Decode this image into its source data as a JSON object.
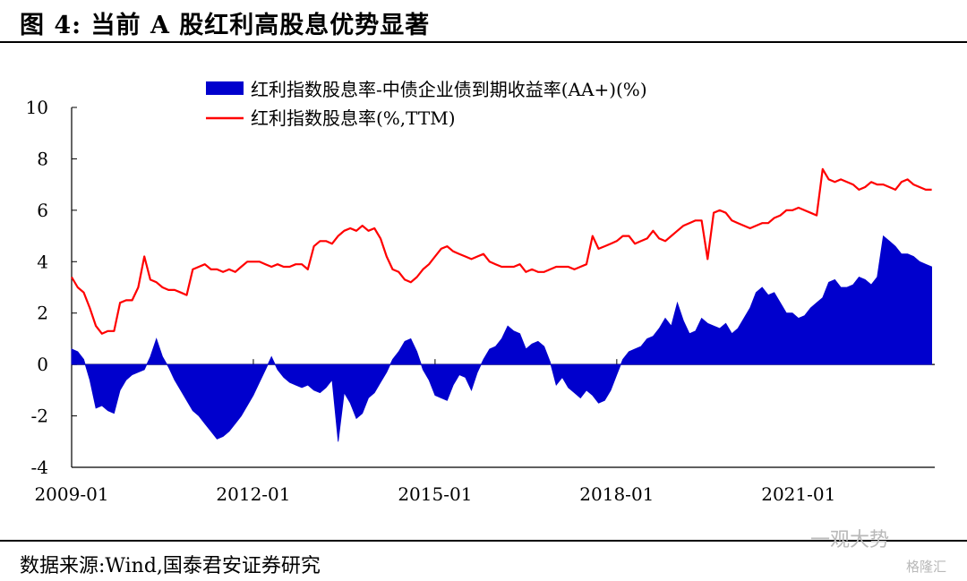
{
  "figure_title": "图 4:  当前 A 股红利高股息优势显著",
  "source": "数据来源:Wind,国泰君安证券研究",
  "watermark": "一观大势",
  "watermark_small": "格隆汇",
  "colors": {
    "area": "#0000cd",
    "line": "#ff0000",
    "axis": "#000000"
  },
  "chart_data": {
    "type": "line",
    "title": "",
    "xlabel": "",
    "ylabel": "",
    "ylim": [
      -4,
      10
    ],
    "yticks": [
      -4,
      -2,
      0,
      2,
      4,
      6,
      8,
      10
    ],
    "xlim": [
      2009.0,
      2023.25
    ],
    "xticks": [
      {
        "value": 2009.0,
        "label": "2009-01"
      },
      {
        "value": 2012.0,
        "label": "2012-01"
      },
      {
        "value": 2015.0,
        "label": "2015-01"
      },
      {
        "value": 2018.0,
        "label": "2018-01"
      },
      {
        "value": 2021.0,
        "label": "2021-01"
      }
    ],
    "grid": false,
    "legend_position": "top",
    "series": [
      {
        "name": "红利指数股息率-中债企业债到期收益率(AA+)(%)",
        "kind": "area",
        "x": [
          2009.0,
          2009.1,
          2009.2,
          2009.3,
          2009.4,
          2009.5,
          2009.6,
          2009.7,
          2009.8,
          2009.9,
          2010.0,
          2010.1,
          2010.2,
          2010.3,
          2010.4,
          2010.5,
          2010.6,
          2010.7,
          2010.8,
          2010.9,
          2011.0,
          2011.1,
          2011.2,
          2011.3,
          2011.4,
          2011.5,
          2011.6,
          2011.7,
          2011.8,
          2011.9,
          2012.0,
          2012.1,
          2012.2,
          2012.3,
          2012.4,
          2012.5,
          2012.6,
          2012.7,
          2012.8,
          2012.9,
          2013.0,
          2013.1,
          2013.2,
          2013.3,
          2013.4,
          2013.5,
          2013.6,
          2013.7,
          2013.8,
          2013.9,
          2014.0,
          2014.1,
          2014.2,
          2014.3,
          2014.4,
          2014.5,
          2014.6,
          2014.7,
          2014.8,
          2014.9,
          2015.0,
          2015.1,
          2015.2,
          2015.3,
          2015.4,
          2015.5,
          2015.6,
          2015.7,
          2015.8,
          2015.9,
          2016.0,
          2016.1,
          2016.2,
          2016.3,
          2016.4,
          2016.5,
          2016.6,
          2016.7,
          2016.8,
          2016.9,
          2017.0,
          2017.1,
          2017.2,
          2017.3,
          2017.4,
          2017.5,
          2017.6,
          2017.7,
          2017.8,
          2017.9,
          2018.0,
          2018.1,
          2018.2,
          2018.3,
          2018.4,
          2018.5,
          2018.6,
          2018.7,
          2018.8,
          2018.9,
          2019.0,
          2019.1,
          2019.2,
          2019.3,
          2019.4,
          2019.5,
          2019.6,
          2019.7,
          2019.8,
          2019.9,
          2020.0,
          2020.1,
          2020.2,
          2020.3,
          2020.4,
          2020.5,
          2020.6,
          2020.7,
          2020.8,
          2020.9,
          2021.0,
          2021.1,
          2021.2,
          2021.3,
          2021.4,
          2021.5,
          2021.6,
          2021.7,
          2021.8,
          2021.9,
          2022.0,
          2022.1,
          2022.2,
          2022.3,
          2022.4,
          2022.5,
          2022.6,
          2022.7,
          2022.8,
          2022.9,
          2023.0,
          2023.1,
          2023.2
        ],
        "values": [
          0.6,
          0.5,
          0.2,
          -0.6,
          -1.7,
          -1.6,
          -1.8,
          -1.9,
          -1.0,
          -0.6,
          -0.4,
          -0.3,
          -0.2,
          0.3,
          1.0,
          0.3,
          -0.1,
          -0.6,
          -1.0,
          -1.4,
          -1.8,
          -2.0,
          -2.3,
          -2.6,
          -2.9,
          -2.8,
          -2.6,
          -2.3,
          -2.0,
          -1.6,
          -1.2,
          -0.7,
          -0.2,
          0.3,
          -0.2,
          -0.5,
          -0.7,
          -0.8,
          -0.9,
          -0.8,
          -1.0,
          -1.1,
          -0.9,
          -0.6,
          -3.0,
          -1.1,
          -1.5,
          -2.1,
          -1.9,
          -1.3,
          -1.1,
          -0.7,
          -0.3,
          0.2,
          0.5,
          0.9,
          1.0,
          0.5,
          -0.2,
          -0.6,
          -1.2,
          -1.3,
          -1.4,
          -0.8,
          -0.4,
          -0.5,
          -1.0,
          -0.3,
          0.2,
          0.6,
          0.7,
          1.0,
          1.5,
          1.3,
          1.2,
          0.6,
          0.8,
          0.9,
          0.7,
          0.1,
          -0.8,
          -0.5,
          -0.9,
          -1.1,
          -1.3,
          -1.0,
          -1.2,
          -1.5,
          -1.4,
          -1.0,
          -0.4,
          0.2,
          0.5,
          0.6,
          0.7,
          1.0,
          1.1,
          1.4,
          1.8,
          1.5,
          2.4,
          1.7,
          1.2,
          1.3,
          1.8,
          1.6,
          1.5,
          1.4,
          1.6,
          1.2,
          1.4,
          1.8,
          2.2,
          2.8,
          3.0,
          2.7,
          2.8,
          2.4,
          2.0,
          2.0,
          1.8,
          1.9,
          2.2,
          2.4,
          2.6,
          3.2,
          3.3,
          3.0,
          3.0,
          3.1,
          3.4,
          3.3,
          3.1,
          3.4,
          5.0,
          4.8,
          4.6,
          4.3,
          4.3,
          4.2,
          4.0,
          3.9,
          3.8
        ]
      },
      {
        "name": "红利指数股息率(%,TTM)",
        "kind": "line",
        "x": [
          2009.0,
          2009.1,
          2009.2,
          2009.3,
          2009.4,
          2009.5,
          2009.6,
          2009.7,
          2009.8,
          2009.9,
          2010.0,
          2010.1,
          2010.2,
          2010.3,
          2010.4,
          2010.5,
          2010.6,
          2010.7,
          2010.8,
          2010.9,
          2011.0,
          2011.1,
          2011.2,
          2011.3,
          2011.4,
          2011.5,
          2011.6,
          2011.7,
          2011.8,
          2011.9,
          2012.0,
          2012.1,
          2012.2,
          2012.3,
          2012.4,
          2012.5,
          2012.6,
          2012.7,
          2012.8,
          2012.9,
          2013.0,
          2013.1,
          2013.2,
          2013.3,
          2013.4,
          2013.5,
          2013.6,
          2013.7,
          2013.8,
          2013.9,
          2014.0,
          2014.1,
          2014.2,
          2014.3,
          2014.4,
          2014.5,
          2014.6,
          2014.7,
          2014.8,
          2014.9,
          2015.0,
          2015.1,
          2015.2,
          2015.3,
          2015.4,
          2015.5,
          2015.6,
          2015.7,
          2015.8,
          2015.9,
          2016.0,
          2016.1,
          2016.2,
          2016.3,
          2016.4,
          2016.5,
          2016.6,
          2016.7,
          2016.8,
          2016.9,
          2017.0,
          2017.1,
          2017.2,
          2017.3,
          2017.4,
          2017.5,
          2017.6,
          2017.7,
          2017.8,
          2017.9,
          2018.0,
          2018.1,
          2018.2,
          2018.3,
          2018.4,
          2018.5,
          2018.6,
          2018.7,
          2018.8,
          2018.9,
          2019.0,
          2019.1,
          2019.2,
          2019.3,
          2019.4,
          2019.5,
          2019.6,
          2019.7,
          2019.8,
          2019.9,
          2020.0,
          2020.1,
          2020.2,
          2020.3,
          2020.4,
          2020.5,
          2020.6,
          2020.7,
          2020.8,
          2020.9,
          2021.0,
          2021.1,
          2021.2,
          2021.3,
          2021.4,
          2021.5,
          2021.6,
          2021.7,
          2021.8,
          2021.9,
          2022.0,
          2022.1,
          2022.2,
          2022.3,
          2022.4,
          2022.5,
          2022.6,
          2022.7,
          2022.8,
          2022.9,
          2023.0,
          2023.1,
          2023.2
        ],
        "values": [
          3.4,
          3.0,
          2.8,
          2.2,
          1.5,
          1.2,
          1.3,
          1.3,
          2.4,
          2.5,
          2.5,
          3.0,
          4.2,
          3.3,
          3.2,
          3.0,
          2.9,
          2.9,
          2.8,
          2.7,
          3.7,
          3.8,
          3.9,
          3.7,
          3.7,
          3.6,
          3.7,
          3.6,
          3.8,
          4.0,
          4.0,
          4.0,
          3.9,
          3.8,
          3.9,
          3.8,
          3.8,
          3.9,
          3.9,
          3.7,
          4.6,
          4.8,
          4.8,
          4.7,
          5.0,
          5.2,
          5.3,
          5.2,
          5.4,
          5.2,
          5.3,
          4.9,
          4.2,
          3.7,
          3.6,
          3.3,
          3.2,
          3.4,
          3.7,
          3.9,
          4.2,
          4.5,
          4.6,
          4.4,
          4.3,
          4.2,
          4.1,
          4.2,
          4.3,
          4.0,
          3.9,
          3.8,
          3.8,
          3.8,
          3.9,
          3.6,
          3.7,
          3.6,
          3.6,
          3.7,
          3.8,
          3.8,
          3.8,
          3.7,
          3.8,
          3.9,
          5.0,
          4.5,
          4.6,
          4.7,
          4.8,
          5.0,
          5.0,
          4.7,
          4.8,
          4.9,
          5.2,
          4.9,
          4.8,
          5.0,
          5.2,
          5.4,
          5.5,
          5.6,
          5.6,
          4.1,
          5.9,
          6.0,
          5.9,
          5.6,
          5.5,
          5.4,
          5.3,
          5.4,
          5.5,
          5.5,
          5.7,
          5.8,
          6.0,
          6.0,
          6.1,
          6.0,
          5.9,
          5.8,
          7.6,
          7.2,
          7.1,
          7.2,
          7.1,
          7.0,
          6.8,
          6.9,
          7.1,
          7.0,
          7.0,
          6.9,
          6.8,
          7.1,
          7.2,
          7.0,
          6.9,
          6.8,
          6.8
        ]
      }
    ]
  }
}
